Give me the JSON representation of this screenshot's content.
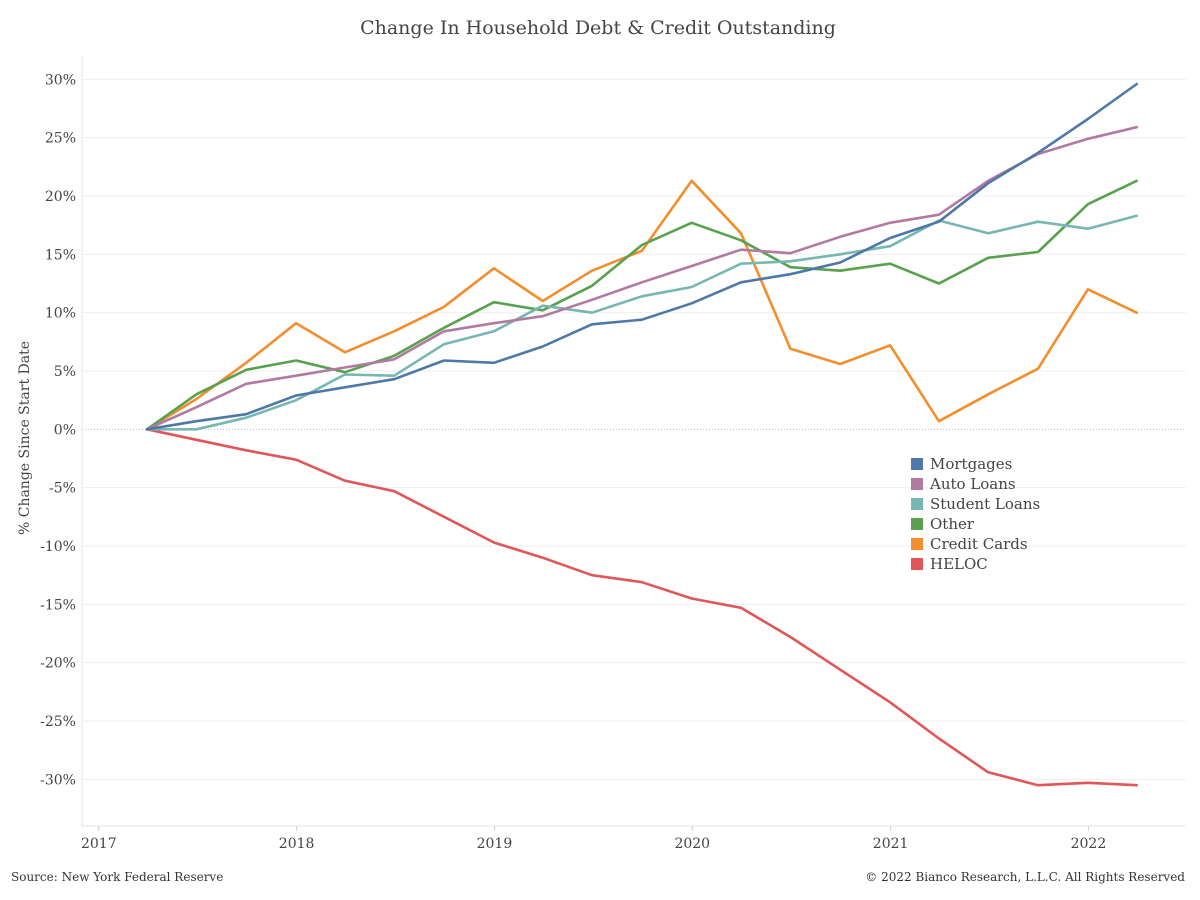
{
  "chart_data": {
    "type": "line",
    "title": "Change In Household Debt & Credit Outstanding",
    "ylabel": "% Change Since Start Date",
    "xlabel": "",
    "x": [
      "2017-03-31",
      "2017-06-30",
      "2017-09-30",
      "2017-12-31",
      "2018-03-31",
      "2018-06-30",
      "2018-09-30",
      "2018-12-31",
      "2019-03-31",
      "2019-06-30",
      "2019-09-30",
      "2019-12-31",
      "2020-03-31",
      "2020-06-30",
      "2020-09-30",
      "2020-12-31",
      "2021-03-31",
      "2021-06-30",
      "2021-09-30",
      "2021-12-31",
      "2022-03-31"
    ],
    "x_tick_labels": [
      "2017",
      "2018",
      "2019",
      "2020",
      "2021",
      "2022"
    ],
    "xlim": [
      "2016-12-01",
      "2022-06-30"
    ],
    "ylim": [
      -34,
      32
    ],
    "y_ticks": [
      -30,
      -25,
      -20,
      -15,
      -10,
      -5,
      0,
      5,
      10,
      15,
      20,
      25,
      30
    ],
    "y_tick_format": "%",
    "grid": true,
    "legend_position": "lower-right",
    "series": [
      {
        "name": "Mortgages",
        "color": "#4e79a7",
        "values": [
          0,
          0.7,
          1.3,
          2.9,
          3.6,
          4.3,
          5.9,
          5.7,
          7.1,
          9.0,
          9.4,
          10.8,
          12.6,
          13.3,
          14.3,
          16.4,
          17.8,
          21.1,
          23.7,
          26.6,
          29.6
        ]
      },
      {
        "name": "Auto Loans",
        "color": "#b07aa1",
        "values": [
          0,
          1.9,
          3.9,
          4.6,
          5.3,
          6.0,
          8.4,
          9.1,
          9.7,
          11.1,
          12.6,
          14.0,
          15.4,
          15.1,
          16.5,
          17.7,
          18.4,
          21.3,
          23.6,
          24.9,
          25.9
        ]
      },
      {
        "name": "Student Loans",
        "color": "#76b7b2",
        "values": [
          0,
          0.0,
          1.0,
          2.5,
          4.7,
          4.6,
          7.3,
          8.4,
          10.6,
          10.0,
          11.4,
          12.2,
          14.2,
          14.4,
          15.0,
          15.7,
          17.9,
          16.8,
          17.8,
          17.2,
          18.3
        ]
      },
      {
        "name": "Other",
        "color": "#59a14f",
        "values": [
          0,
          3.0,
          5.1,
          5.9,
          4.9,
          6.3,
          8.7,
          10.9,
          10.2,
          12.3,
          15.8,
          17.7,
          16.2,
          13.9,
          13.6,
          14.2,
          12.5,
          14.7,
          15.2,
          19.3,
          21.3
        ]
      },
      {
        "name": "Credit Cards",
        "color": "#f28e2b",
        "values": [
          0,
          2.6,
          5.7,
          9.1,
          6.6,
          8.4,
          10.5,
          13.8,
          11.0,
          13.6,
          15.3,
          21.3,
          16.8,
          6.9,
          5.6,
          7.2,
          0.7,
          3.0,
          5.2,
          12.0,
          10.0
        ]
      },
      {
        "name": "HELOC",
        "color": "#e15759",
        "values": [
          0,
          -0.9,
          -1.8,
          -2.6,
          -4.4,
          -5.3,
          -7.5,
          -9.7,
          -11.0,
          -12.5,
          -13.1,
          -14.5,
          -15.3,
          -17.8,
          -20.6,
          -23.4,
          -26.5,
          -29.4,
          -30.5,
          -30.3,
          -30.5
        ]
      }
    ]
  },
  "notes": {
    "source": "Source: New York Federal Reserve",
    "copyright": "© 2022 Bianco Research, L.L.C. All Rights Reserved"
  }
}
